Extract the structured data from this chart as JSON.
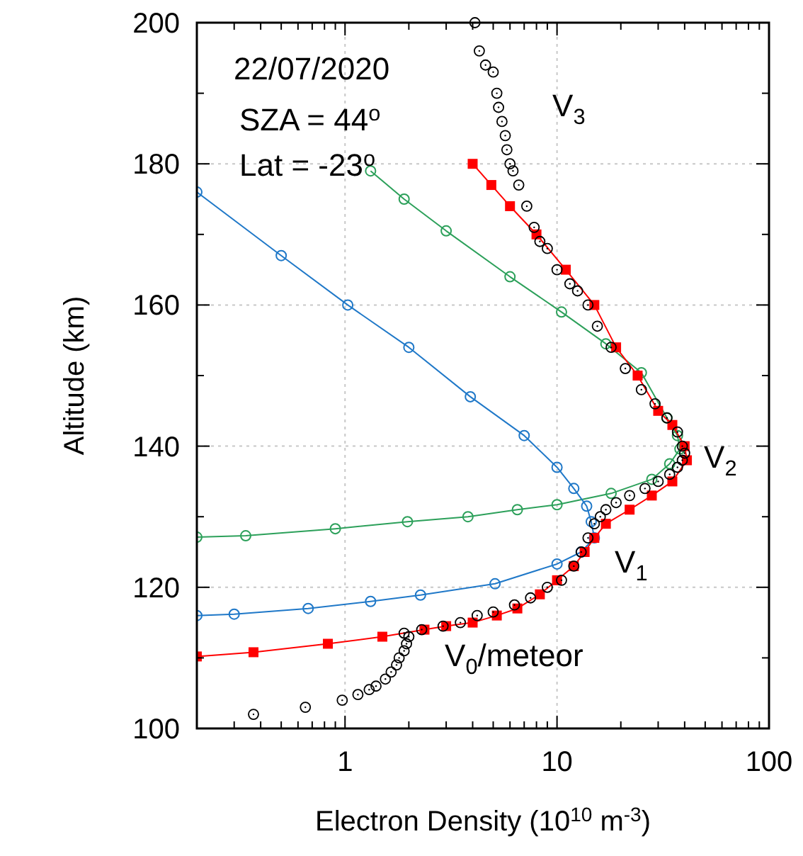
{
  "chart_data": {
    "type": "line",
    "xlabel": "Electron Density (10$^{10}$ m$^{-3}$)",
    "ylabel": "Altitude (km)",
    "log": "x",
    "grid": true,
    "xlim": [
      0.2,
      100
    ],
    "ylim": [
      100,
      200
    ],
    "xticks": [
      {
        "value": 0.2,
        "label": null
      },
      {
        "value": 0.3,
        "label": null
      },
      {
        "value": 0.4,
        "label": null
      },
      {
        "value": 0.5,
        "label": null
      },
      {
        "value": 0.6,
        "label": null
      },
      {
        "value": 0.7,
        "label": null
      },
      {
        "value": 0.8,
        "label": null
      },
      {
        "value": 0.9,
        "label": null
      },
      1,
      {
        "value": 2,
        "label": null
      },
      {
        "value": 3,
        "label": null
      },
      {
        "value": 4,
        "label": null
      },
      {
        "value": 5,
        "label": null
      },
      {
        "value": 6,
        "label": null
      },
      {
        "value": 7,
        "label": null
      },
      {
        "value": 8,
        "label": null
      },
      {
        "value": 9,
        "label": null
      },
      10,
      {
        "value": 20,
        "label": null
      },
      {
        "value": 30,
        "label": null
      },
      {
        "value": 40,
        "label": null
      },
      {
        "value": 50,
        "label": null
      },
      {
        "value": 60,
        "label": null
      },
      {
        "value": 70,
        "label": null
      },
      {
        "value": 80,
        "label": null
      },
      {
        "value": 90,
        "label": null
      },
      100
    ],
    "yticks": [
      100,
      {
        "value": 110,
        "label": null
      },
      120,
      {
        "value": 130,
        "label": null
      },
      140,
      {
        "value": 150,
        "label": null
      },
      160,
      {
        "value": 170,
        "label": null
      },
      180,
      {
        "value": 190,
        "label": null
      },
      200
    ],
    "annotations": [
      "22/07/2020",
      "SZA = 44$^{o}$",
      "Lat = -23$^{o}$",
      "V$_{3}$",
      "V$_{2}$",
      "V$_{1}$",
      "V$_{0}$/meteor"
    ],
    "series": [
      {
        "marker": "circle",
        "color": "#2ca05a",
        "x": [
          0.2,
          0.34,
          0.9,
          1.97,
          3.8,
          6.5,
          10,
          18,
          28,
          34,
          38,
          37,
          33,
          25,
          17,
          10.5,
          6,
          3,
          1.9,
          1.32
        ],
        "values": [
          127.1,
          127.3,
          128.3,
          129.3,
          130,
          131,
          131.7,
          133.3,
          135.3,
          137.5,
          139.6,
          141.5,
          144,
          150.4,
          154.5,
          159,
          164,
          170.5,
          175,
          179
        ]
      },
      {
        "marker": "circle",
        "color": "#1f78c8",
        "x": [
          0.2,
          0.3,
          0.67,
          1.32,
          2.27,
          5.1,
          10,
          13,
          15,
          14.5,
          13.8,
          12,
          10,
          7,
          3.9,
          2,
          1.03,
          0.5,
          0.2
        ],
        "values": [
          116,
          116.2,
          117,
          118,
          118.9,
          120.5,
          123.3,
          125,
          127,
          129.3,
          131.5,
          134,
          137,
          141.5,
          147,
          154,
          160,
          167,
          176
        ]
      },
      {
        "marker": "square",
        "color": "#ff0000",
        "x": [
          0.2,
          0.37,
          0.83,
          1.5,
          2.37,
          3,
          4,
          5.2,
          6.5,
          8.3,
          10,
          12,
          13.5,
          15,
          17,
          22,
          28,
          35,
          41,
          40,
          35,
          30,
          24,
          19,
          15,
          11,
          8,
          6,
          4.9,
          4
        ],
        "values": [
          110.2,
          110.8,
          112,
          113,
          114,
          114.5,
          115,
          116,
          117,
          119,
          121,
          123,
          125,
          127,
          129,
          131,
          133,
          135,
          138,
          140,
          143,
          145,
          150,
          154,
          160,
          165,
          170,
          174,
          177,
          180
        ]
      },
      {
        "type": "scatter",
        "marker": "circle",
        "color": "#000000",
        "x": [
          0.37,
          0.65,
          0.97,
          1.15,
          1.3,
          1.4,
          1.55,
          1.65,
          1.75,
          1.8,
          1.9,
          1.95,
          2.0,
          1.9,
          2.3,
          2.9,
          3.5,
          4.2,
          5,
          6.3,
          7.5,
          9,
          10.5,
          12,
          13,
          14,
          15,
          16,
          17,
          19,
          22,
          26,
          30,
          34,
          37,
          39,
          40,
          39,
          37,
          33,
          29,
          25,
          21,
          18,
          15.5,
          14,
          12.5,
          11.5,
          10,
          9,
          8.3,
          7.8,
          7.2,
          6.6,
          6.2,
          6.0,
          5.8,
          5.7,
          5.5,
          5.3,
          5.2,
          5.0,
          4.6,
          4.3,
          4.1
        ],
        "values": [
          102,
          103,
          104,
          104.8,
          105.5,
          106,
          107,
          108,
          109,
          110,
          111,
          112,
          113,
          113.5,
          114,
          114.5,
          115,
          116,
          116.5,
          117.5,
          118.5,
          120,
          121,
          123,
          125,
          127,
          129,
          130,
          131,
          132,
          133,
          134,
          135,
          136,
          137,
          138,
          139,
          140,
          142,
          144,
          146,
          148,
          151,
          154,
          157,
          160,
          162,
          163,
          165,
          168,
          169,
          171,
          174,
          177,
          179,
          180,
          182,
          184,
          186,
          188,
          190,
          193,
          194,
          196,
          200
        ]
      }
    ]
  }
}
